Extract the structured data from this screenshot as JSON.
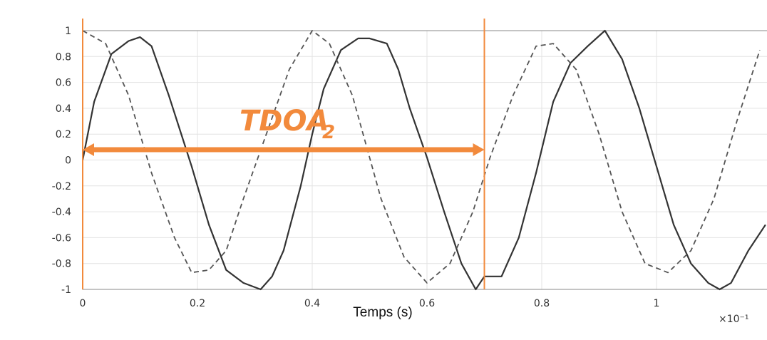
{
  "chart_data": {
    "type": "line",
    "title": "",
    "xlabel": "Temps (s)",
    "ylabel": "",
    "xlim": [
      0,
      1.2
    ],
    "ylim": [
      -1,
      1
    ],
    "grid": true,
    "x_ticks": [
      "0",
      "0.2",
      "0.4",
      "0.6",
      "0.8",
      "1"
    ],
    "y_ticks": [
      "1",
      "0.8",
      "0.6",
      "0.4",
      "0.2",
      "0",
      "-0.2",
      "-0.4",
      "-0.6",
      "-0.8",
      "-1"
    ],
    "x_scale_label": "×10⁻¹",
    "series": [
      {
        "style": "solid",
        "color": "#333333",
        "x": [
          0,
          0.02,
          0.05,
          0.08,
          0.1,
          0.12,
          0.15,
          0.19,
          0.22,
          0.25,
          0.28,
          0.31,
          0.33,
          0.35,
          0.38,
          0.4,
          0.42,
          0.45,
          0.48,
          0.5,
          0.53,
          0.55,
          0.57,
          0.6,
          0.63,
          0.66,
          0.685,
          0.7,
          0.73,
          0.76,
          0.79,
          0.82,
          0.85,
          0.88,
          0.91,
          0.94,
          0.97,
          1.0,
          1.03,
          1.06,
          1.09,
          1.11,
          1.13,
          1.16,
          1.19
        ],
        "y": [
          0,
          0.45,
          0.82,
          0.92,
          0.95,
          0.88,
          0.5,
          -0.05,
          -0.5,
          -0.85,
          -0.95,
          -1.0,
          -0.9,
          -0.7,
          -0.2,
          0.2,
          0.55,
          0.85,
          0.94,
          0.94,
          0.9,
          0.7,
          0.4,
          0.02,
          -0.4,
          -0.8,
          -1.0,
          -0.9,
          -0.9,
          -0.6,
          -0.1,
          0.45,
          0.75,
          0.88,
          1.0,
          0.78,
          0.4,
          -0.05,
          -0.5,
          -0.8,
          -0.95,
          -1.0,
          -0.95,
          -0.7,
          -0.5
        ]
      },
      {
        "style": "dashed",
        "color": "#555555",
        "x": [
          0,
          0.04,
          0.08,
          0.12,
          0.16,
          0.19,
          0.22,
          0.25,
          0.28,
          0.32,
          0.36,
          0.4,
          0.43,
          0.47,
          0.52,
          0.56,
          0.6,
          0.64,
          0.68,
          0.71,
          0.75,
          0.79,
          0.82,
          0.86,
          0.9,
          0.94,
          0.98,
          1.02,
          1.06,
          1.1,
          1.14,
          1.18
        ],
        "y": [
          1.0,
          0.9,
          0.5,
          -0.1,
          -0.6,
          -0.87,
          -0.85,
          -0.7,
          -0.3,
          0.2,
          0.7,
          1.0,
          0.9,
          0.5,
          -0.3,
          -0.75,
          -0.95,
          -0.8,
          -0.4,
          0.02,
          0.5,
          0.88,
          0.9,
          0.7,
          0.2,
          -0.4,
          -0.8,
          -0.87,
          -0.7,
          -0.3,
          0.3,
          0.85
        ]
      }
    ],
    "annotations": {
      "label_main": "TDOA",
      "label_sub": "2",
      "color": "#f28a3c",
      "markers_x": [
        0,
        0.7
      ],
      "arrow_y": 0.08
    }
  }
}
